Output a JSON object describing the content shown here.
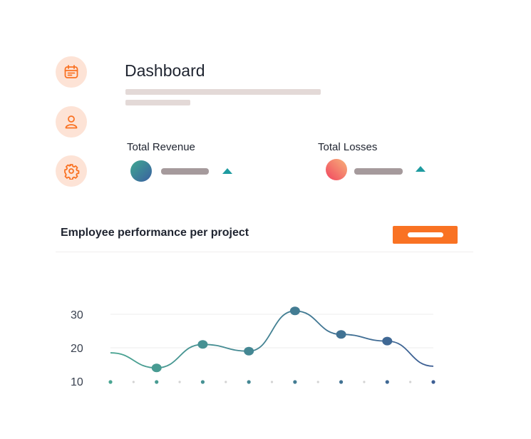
{
  "sidebar": {
    "items": [
      {
        "icon": "calendar-icon"
      },
      {
        "icon": "user-icon"
      },
      {
        "icon": "gear-icon"
      }
    ],
    "accent": "#f97223",
    "bg": "#fde3d6"
  },
  "header": {
    "title": "Dashboard"
  },
  "stats": [
    {
      "label": "Total Revenue",
      "trend": "up"
    },
    {
      "label": "Total Losses",
      "trend": "up"
    }
  ],
  "chart_data": {
    "type": "line",
    "title": "Employee performance per project",
    "xlabel": "",
    "ylabel": "",
    "y_ticks": [
      30,
      20,
      10
    ],
    "ylim": [
      10,
      30
    ],
    "series": [
      {
        "values": [
          18.5,
          14,
          21,
          19,
          31,
          24,
          22,
          14.5
        ],
        "markers": [
          false,
          true,
          true,
          true,
          true,
          true,
          true,
          false
        ]
      }
    ],
    "grid": true,
    "colors": {
      "start": "#4aa592",
      "end": "#3d5e94"
    }
  }
}
